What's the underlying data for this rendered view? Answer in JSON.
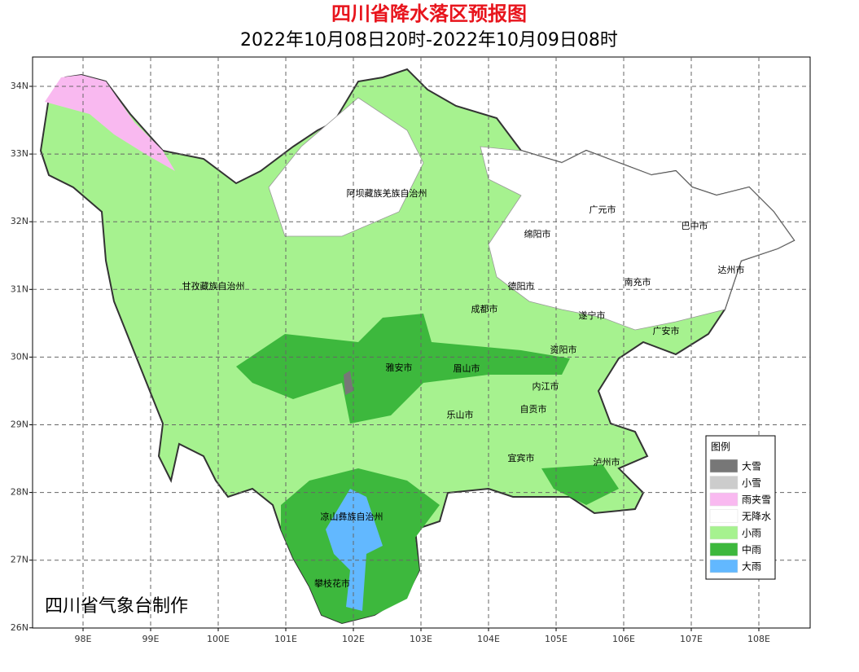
{
  "header": {
    "title": "四川省降水落区预报图",
    "subtitle": "2022年10月08日20时-2022年10月09日08时"
  },
  "axes": {
    "x_ticks": [
      "98E",
      "99E",
      "100E",
      "101E",
      "102E",
      "103E",
      "104E",
      "105E",
      "106E",
      "107E",
      "108E"
    ],
    "y_ticks": [
      "34N",
      "33N",
      "32N",
      "31N",
      "30N",
      "29N",
      "28N",
      "27N",
      "26N"
    ]
  },
  "places": [
    "阿坝藏族羌族自治州",
    "广元市",
    "巴中市",
    "绵阳市",
    "达州市",
    "甘孜藏族自治州",
    "德阳市",
    "南充市",
    "成都市",
    "遂宁市",
    "广安市",
    "资阳市",
    "雅安市",
    "眉山市",
    "内江市",
    "自贡市",
    "乐山市",
    "宜宾市",
    "泸州市",
    "凉山彝族自治州",
    "攀枝花市"
  ],
  "legend": {
    "title": "图例",
    "items": [
      {
        "label": "大雪",
        "color": "#777777"
      },
      {
        "label": "小雪",
        "color": "#cccccc"
      },
      {
        "label": "雨夹雪",
        "color": "#f9b9f0"
      },
      {
        "label": "无降水",
        "color": "#ffffff"
      },
      {
        "label": "小雨",
        "color": "#a6f28f"
      },
      {
        "label": "中雨",
        "color": "#3db83d"
      },
      {
        "label": "大雨",
        "color": "#62b8ff"
      }
    ]
  },
  "credit": "四川省气象台制作"
}
